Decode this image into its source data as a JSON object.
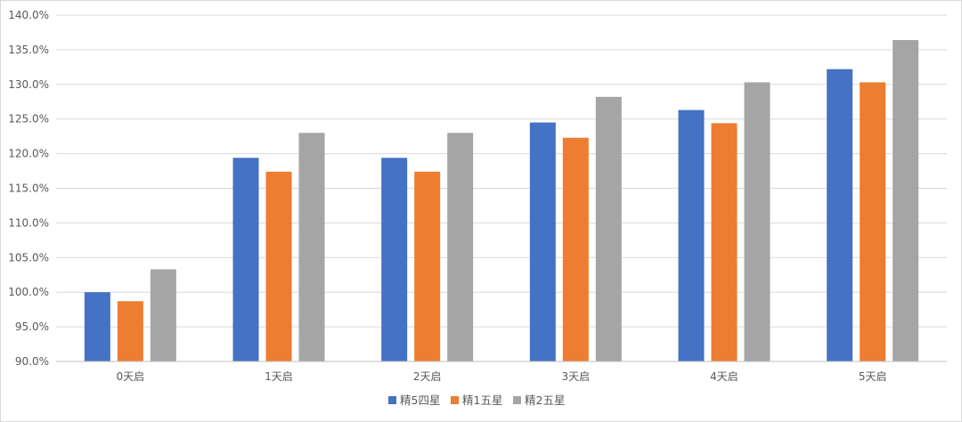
{
  "chart_data": {
    "type": "bar",
    "title": "",
    "xlabel": "",
    "ylabel": "",
    "categories": [
      "0天启",
      "1天启",
      "2天启",
      "3天启",
      "4天启",
      "5天启"
    ],
    "series": [
      {
        "name": "精5四星",
        "color": "#4472c4",
        "values": [
          100.0,
          119.4,
          119.4,
          124.5,
          126.3,
          132.2
        ]
      },
      {
        "name": "精1五星",
        "color": "#ed7d31",
        "values": [
          98.7,
          117.4,
          117.4,
          122.3,
          124.4,
          130.3
        ]
      },
      {
        "name": "精2五星",
        "color": "#a5a5a5",
        "values": [
          103.3,
          123.0,
          123.0,
          128.2,
          130.3,
          136.4
        ]
      }
    ],
    "ylim": [
      90,
      140
    ],
    "yticks": [
      90,
      95,
      100,
      105,
      110,
      115,
      120,
      125,
      130,
      135,
      140
    ],
    "ytick_labels": [
      "90.0%",
      "95.0%",
      "100.0%",
      "105.0%",
      "110.0%",
      "115.0%",
      "120.0%",
      "125.0%",
      "130.0%",
      "135.0%",
      "140.0%"
    ],
    "grid": true,
    "legend_position": "bottom"
  }
}
